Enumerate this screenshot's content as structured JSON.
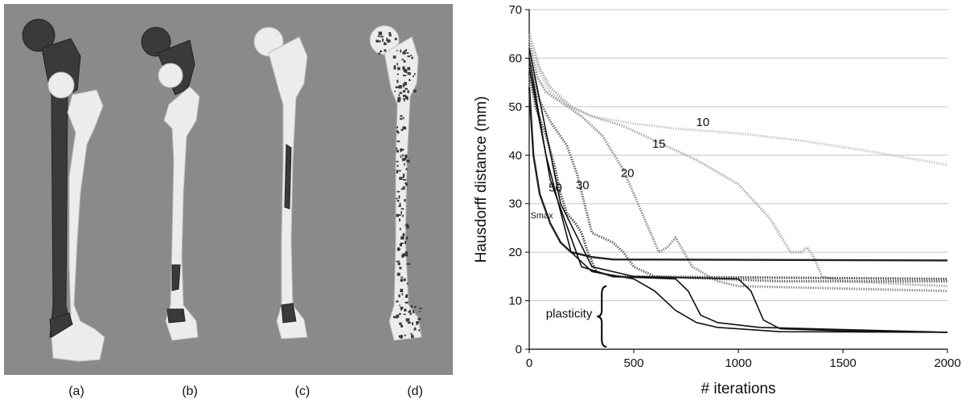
{
  "figure": {
    "panels": [
      {
        "label": "(a)"
      },
      {
        "label": "(b)"
      },
      {
        "label": "(c)"
      },
      {
        "label": "(d)"
      }
    ]
  },
  "colors": {
    "panel_background": "#8a8a8a",
    "bone_light": "#ececec",
    "bone_dark": "#3a3a3a"
  },
  "chart_data": {
    "type": "line",
    "title": "",
    "xlabel": "# iterations",
    "ylabel": "Hausdorff distance (mm)",
    "xlim": [
      0,
      2000
    ],
    "ylim": [
      0,
      70
    ],
    "xticks": [
      0,
      500,
      1000,
      1500,
      2000
    ],
    "yticks": [
      0,
      10,
      20,
      30,
      40,
      50,
      60,
      70
    ],
    "grid": "horizontal",
    "series": [
      {
        "name": "10",
        "color": "#c8c8c8",
        "style": "dotted",
        "points": [
          [
            0,
            64
          ],
          [
            50,
            57
          ],
          [
            100,
            53
          ],
          [
            200,
            50
          ],
          [
            300,
            48
          ],
          [
            500,
            46.5
          ],
          [
            700,
            45.5
          ],
          [
            1000,
            44.5
          ],
          [
            1300,
            43
          ],
          [
            1600,
            41
          ],
          [
            2000,
            38
          ]
        ]
      },
      {
        "name": "15",
        "color": "#aaaaaa",
        "style": "dotted",
        "points": [
          [
            0,
            65
          ],
          [
            50,
            58
          ],
          [
            100,
            54
          ],
          [
            200,
            50
          ],
          [
            300,
            48
          ],
          [
            450,
            46
          ],
          [
            600,
            43
          ],
          [
            800,
            39
          ],
          [
            1000,
            34
          ],
          [
            1150,
            27
          ],
          [
            1250,
            20
          ],
          [
            1300,
            20
          ],
          [
            1330,
            21
          ],
          [
            1360,
            19
          ],
          [
            1400,
            15
          ],
          [
            1500,
            14
          ],
          [
            2000,
            13
          ]
        ]
      },
      {
        "name": "20",
        "color": "#8c8c8c",
        "style": "dotted",
        "points": [
          [
            0,
            63
          ],
          [
            40,
            56
          ],
          [
            80,
            53
          ],
          [
            150,
            51
          ],
          [
            250,
            48
          ],
          [
            350,
            44
          ],
          [
            450,
            37
          ],
          [
            550,
            27
          ],
          [
            620,
            20
          ],
          [
            660,
            21
          ],
          [
            700,
            23
          ],
          [
            740,
            20
          ],
          [
            780,
            17
          ],
          [
            900,
            14
          ],
          [
            1000,
            13
          ],
          [
            2000,
            12
          ]
        ]
      },
      {
        "name": "30",
        "color": "#666666",
        "style": "dotted",
        "points": [
          [
            0,
            60
          ],
          [
            40,
            52
          ],
          [
            100,
            47
          ],
          [
            180,
            42
          ],
          [
            230,
            36
          ],
          [
            270,
            29
          ],
          [
            300,
            24
          ],
          [
            350,
            23
          ],
          [
            400,
            22
          ],
          [
            450,
            20
          ],
          [
            500,
            17
          ],
          [
            600,
            15
          ],
          [
            1200,
            14
          ],
          [
            2000,
            14
          ]
        ]
      },
      {
        "name": "50",
        "color": "#444444",
        "style": "dotted",
        "points": [
          [
            0,
            57
          ],
          [
            30,
            50
          ],
          [
            80,
            44
          ],
          [
            120,
            38
          ],
          [
            150,
            32
          ],
          [
            180,
            28
          ],
          [
            220,
            26
          ],
          [
            250,
            24
          ],
          [
            280,
            20
          ],
          [
            320,
            16
          ],
          [
            400,
            15
          ],
          [
            2000,
            14.5
          ]
        ]
      },
      {
        "name": "Smax",
        "color": "#222222",
        "style": "solid",
        "points": [
          [
            0,
            54
          ],
          [
            20,
            40
          ],
          [
            50,
            32
          ],
          [
            100,
            26
          ],
          [
            150,
            22
          ],
          [
            200,
            20
          ],
          [
            300,
            19
          ],
          [
            400,
            18.5
          ],
          [
            2000,
            18.3
          ]
        ]
      },
      {
        "name": "",
        "color": "#111111",
        "style": "solid",
        "points": [
          [
            0,
            58
          ],
          [
            80,
            40
          ],
          [
            200,
            20
          ],
          [
            300,
            16
          ],
          [
            500,
            14.5
          ],
          [
            600,
            12
          ],
          [
            700,
            8
          ],
          [
            800,
            5.5
          ],
          [
            900,
            4.5
          ],
          [
            1200,
            3.6
          ],
          [
            2000,
            3.5
          ]
        ]
      },
      {
        "name": "",
        "color": "#111111",
        "style": "solid",
        "points": [
          [
            0,
            60
          ],
          [
            100,
            35
          ],
          [
            250,
            17
          ],
          [
            400,
            15
          ],
          [
            700,
            14.5
          ],
          [
            760,
            12
          ],
          [
            820,
            7
          ],
          [
            900,
            5.5
          ],
          [
            1100,
            4.5
          ],
          [
            2000,
            3.5
          ]
        ]
      },
      {
        "name": "",
        "color": "#111111",
        "style": "solid",
        "points": [
          [
            0,
            62
          ],
          [
            150,
            30
          ],
          [
            300,
            17
          ],
          [
            500,
            15
          ],
          [
            1000,
            14.5
          ],
          [
            1060,
            12
          ],
          [
            1120,
            6
          ],
          [
            1200,
            4.2
          ],
          [
            1500,
            3.8
          ],
          [
            2000,
            3.5
          ]
        ]
      }
    ],
    "annotations": [
      {
        "text": "10",
        "x": 830,
        "y": 46
      },
      {
        "text": "15",
        "x": 620,
        "y": 41.5
      },
      {
        "text": "20",
        "x": 470,
        "y": 35.5
      },
      {
        "text": "30",
        "x": 255,
        "y": 33
      },
      {
        "text": "50",
        "x": 125,
        "y": 32.5
      },
      {
        "text": "Smax",
        "x": 60,
        "y": 27
      },
      {
        "text": "plasticity",
        "x": 60,
        "y": 8.5
      }
    ]
  }
}
